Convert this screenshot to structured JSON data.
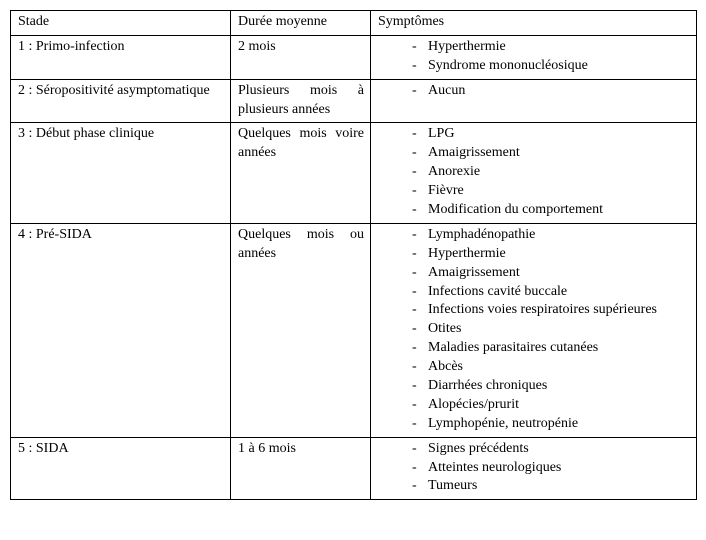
{
  "headers": {
    "stage": "Stade",
    "duration": "Durée moyenne",
    "symptoms": "Symptômes"
  },
  "rows": [
    {
      "stage": "1 : Primo-infection",
      "duration": "2 mois",
      "symptoms": [
        "Hyperthermie",
        "Syndrome mononucléosique"
      ]
    },
    {
      "stage": "2 : Séropositivité asymptomatique",
      "duration": "Plusieurs mois à plusieurs années",
      "symptoms": [
        "Aucun"
      ]
    },
    {
      "stage": "3 : Début phase clinique",
      "duration": "Quelques mois voire années",
      "symptoms": [
        "LPG",
        "Amaigrissement",
        "Anorexie",
        "Fièvre",
        "Modification du comportement"
      ]
    },
    {
      "stage": "4 : Pré-SIDA",
      "duration": "Quelques mois ou années",
      "symptoms": [
        "Lymphadénopathie",
        "Hyperthermie",
        "Amaigrissement",
        "Infections cavité buccale",
        "Infections voies respiratoires supérieures",
        "Otites",
        "Maladies parasitaires cutanées",
        "Abcès",
        "Diarrhées chroniques",
        "Alopécies/prurit",
        "Lymphopénie, neutropénie"
      ]
    },
    {
      "stage": "5 : SIDA",
      "duration": "1 à 6 mois",
      "symptoms": [
        "Signes précédents",
        "Atteintes neurologiques",
        "Tumeurs"
      ]
    }
  ],
  "widen_duration_rows": [
    2,
    3
  ]
}
